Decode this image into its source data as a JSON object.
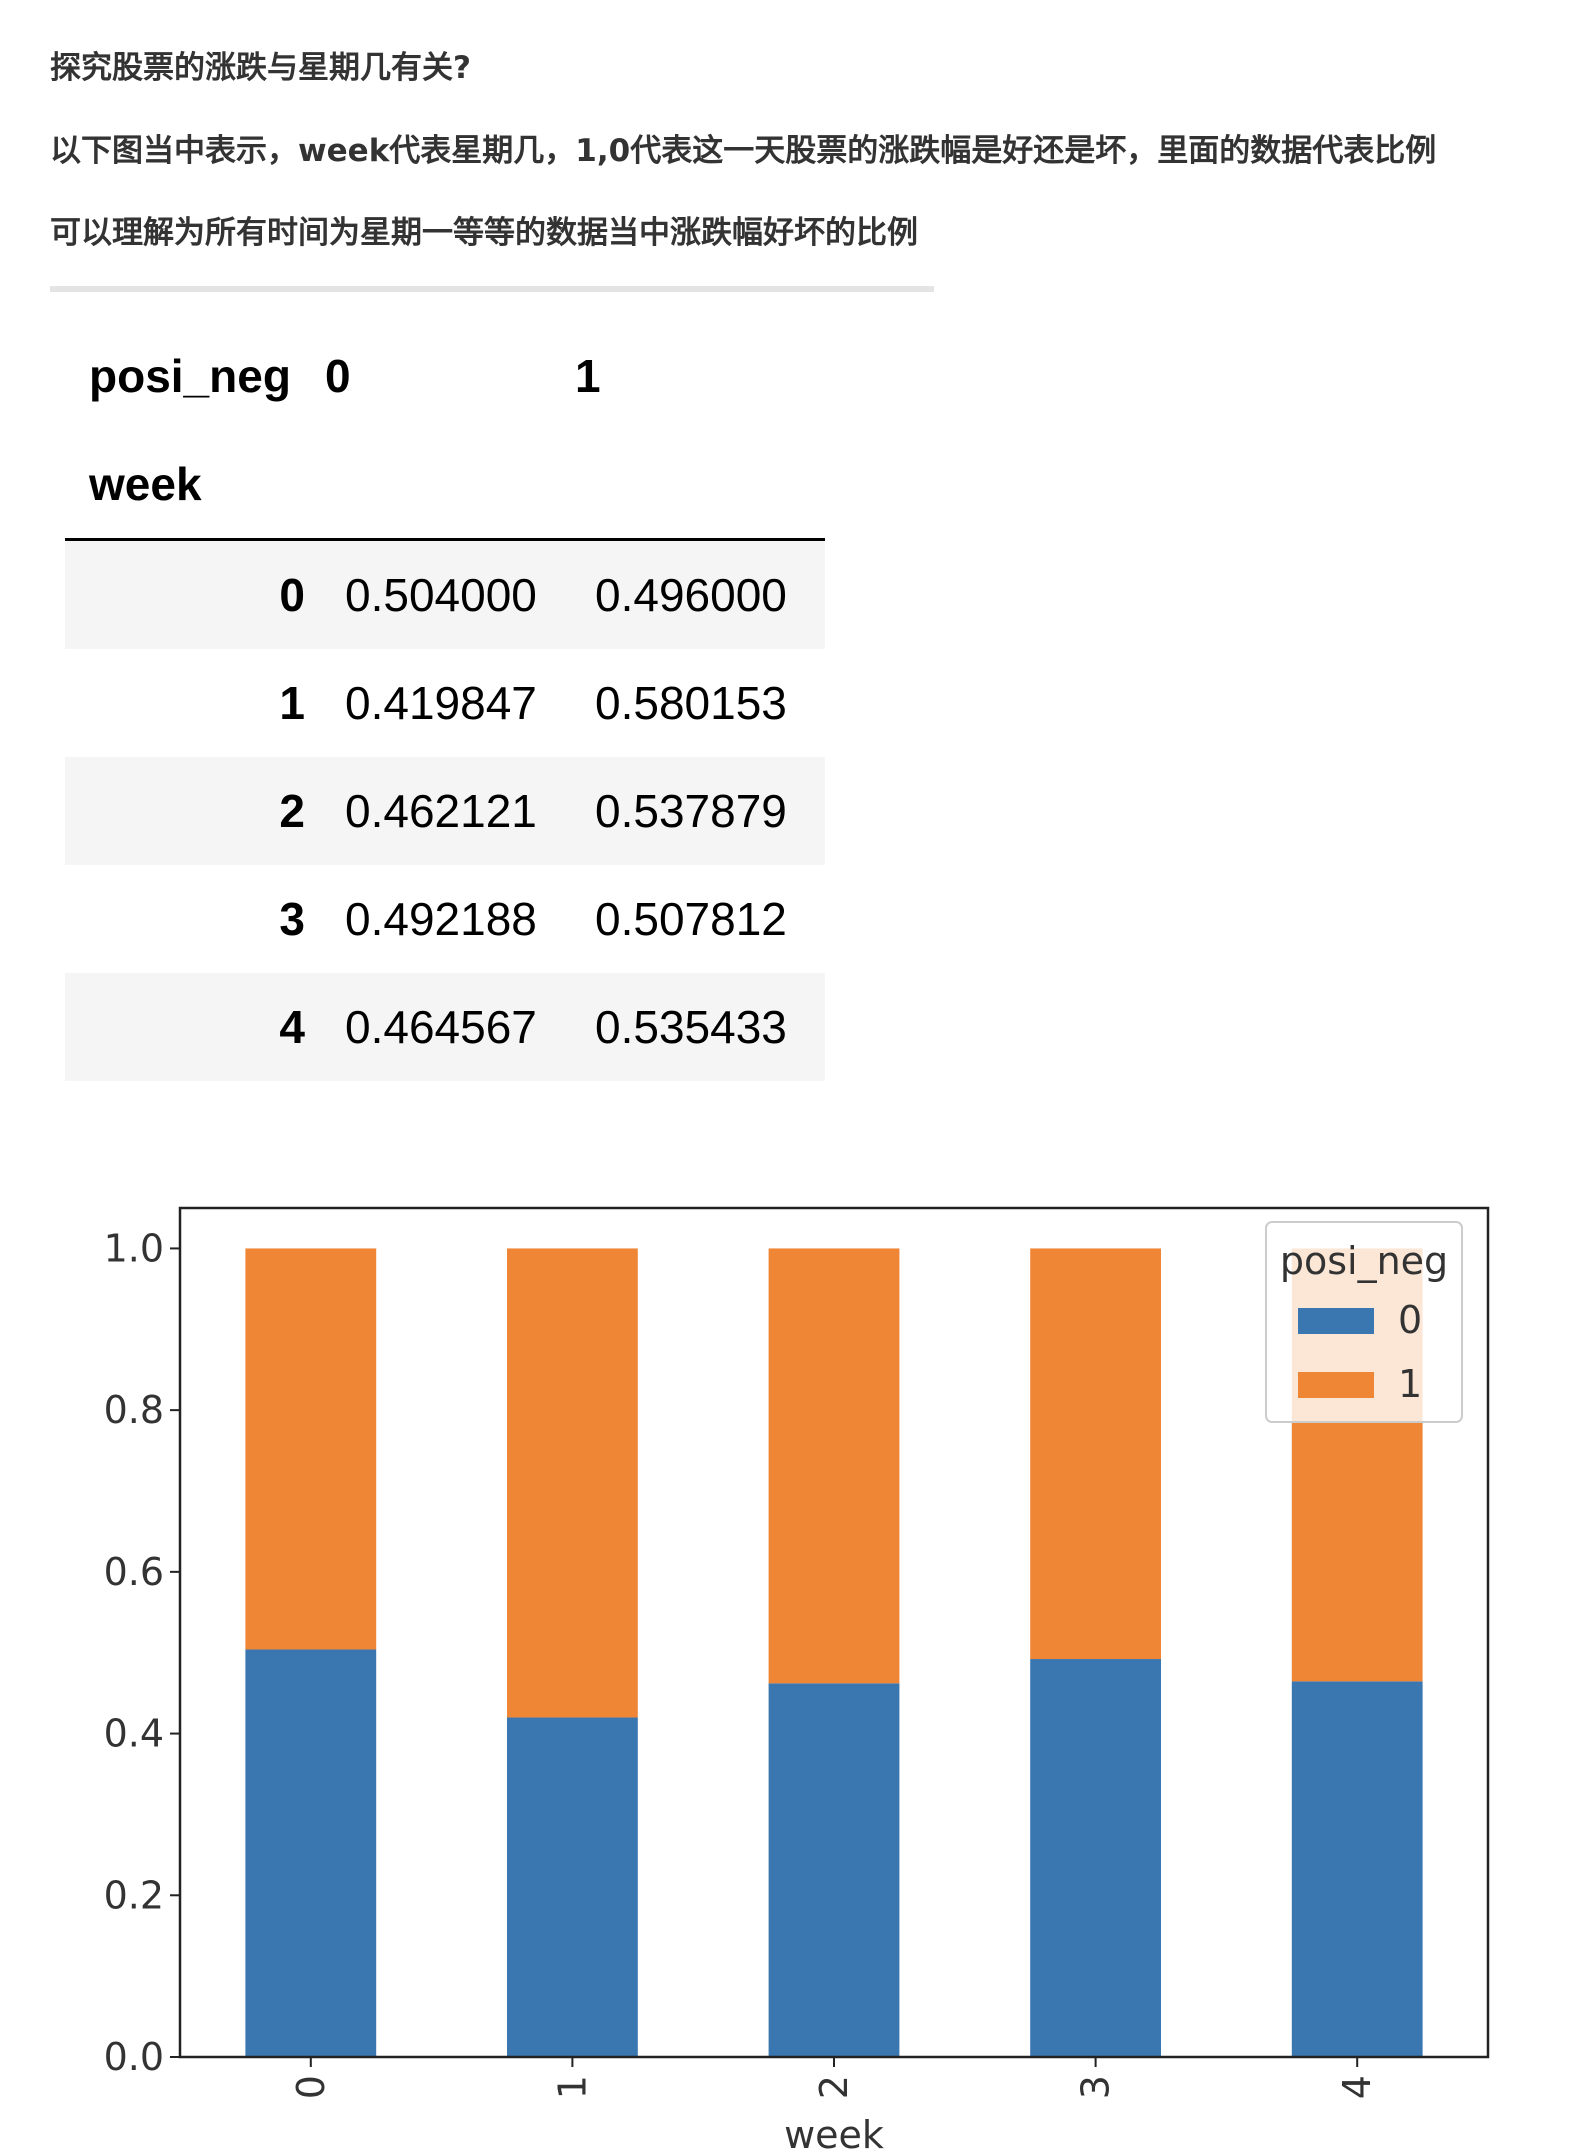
{
  "intro": {
    "line1": "探究股票的涨跌与星期几有关?",
    "line2": "以下图当中表示，week代表星期几，1,0代表这一天股票的涨跌幅是好还是坏，里面的数据代表比例",
    "line3": "可以理解为所有时间为星期一等等的数据当中涨跌幅好坏的比例"
  },
  "table": {
    "columns_name": "posi_neg",
    "index_name": "week",
    "columns": [
      "0",
      "1"
    ],
    "rows": [
      {
        "index": "0",
        "values": [
          "0.504000",
          "0.496000"
        ]
      },
      {
        "index": "1",
        "values": [
          "0.419847",
          "0.580153"
        ]
      },
      {
        "index": "2",
        "values": [
          "0.462121",
          "0.537879"
        ]
      },
      {
        "index": "3",
        "values": [
          "0.492188",
          "0.507812"
        ]
      },
      {
        "index": "4",
        "values": [
          "0.464567",
          "0.535433"
        ]
      }
    ]
  },
  "chart_data": {
    "type": "bar",
    "stacked": true,
    "categories": [
      "0",
      "1",
      "2",
      "3",
      "4"
    ],
    "series": [
      {
        "name": "0",
        "values": [
          0.504,
          0.419847,
          0.462121,
          0.492188,
          0.464567
        ],
        "color": "#3a76af"
      },
      {
        "name": "1",
        "values": [
          0.496,
          0.580153,
          0.537879,
          0.507812,
          0.535433
        ],
        "color": "#ef8636"
      }
    ],
    "title": "",
    "xlabel": "week",
    "ylabel": "",
    "ylim": [
      0,
      1.05
    ],
    "yticks": [
      "0.0",
      "0.2",
      "0.4",
      "0.6",
      "0.8",
      "1.0"
    ],
    "legend_title": "posi_neg",
    "legend_position": "top-right",
    "grid": false
  }
}
